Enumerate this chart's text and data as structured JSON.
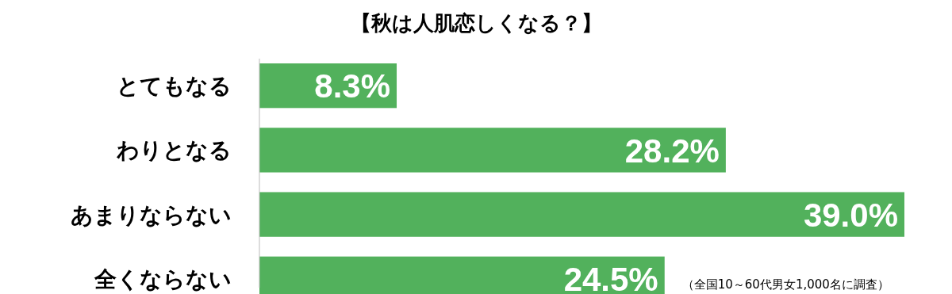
{
  "chart_data": {
    "type": "bar",
    "orientation": "horizontal",
    "title": "【秋は人肌恋しくなる？】",
    "categories": [
      "とてもなる",
      "わりとなる",
      "あまりならない",
      "全くならない"
    ],
    "values": [
      8.3,
      28.2,
      39.0,
      24.5
    ],
    "value_labels": [
      "8.3%",
      "28.2%",
      "39.0%",
      "24.5%"
    ],
    "color": "#52b15c",
    "annotations": [
      "（全国10～60代男女1,000名に調査）"
    ]
  }
}
